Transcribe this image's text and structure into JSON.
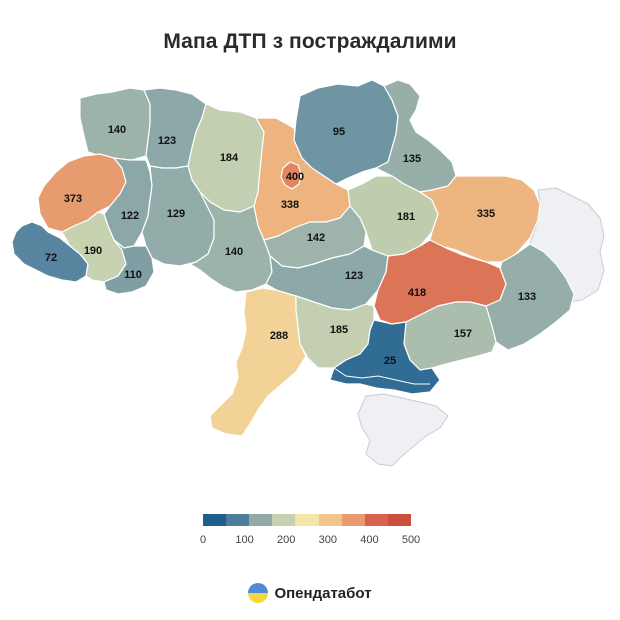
{
  "title": "Мапа ДТП з постраждалими",
  "brand": "Опендатабот",
  "legend": {
    "colors": [
      "#1f5f8e",
      "#4d7f9d",
      "#8fa9a8",
      "#c5d1b0",
      "#f4e6a8",
      "#f1c58b",
      "#e79b6f",
      "#d7634e",
      "#c94f3b"
    ],
    "ticks": [
      "0",
      "100",
      "200",
      "300",
      "400",
      "500"
    ]
  },
  "colors": {
    "occupied": "#eef0f4",
    "occupied_stroke": "#c9ccd6",
    "logo_blue": "#4f8ad6",
    "logo_yellow": "#f5d63c"
  },
  "chart_data": {
    "type": "choropleth",
    "value_range": [
      0,
      500
    ],
    "regions": [
      {
        "id": "volyn",
        "value": 140
      },
      {
        "id": "rivne",
        "value": 123
      },
      {
        "id": "zhytomyr",
        "value": 184
      },
      {
        "id": "kyiv-oblast",
        "value": 338
      },
      {
        "id": "kyiv-city",
        "value": 400
      },
      {
        "id": "chernihiv",
        "value": 95
      },
      {
        "id": "sumy",
        "value": 135
      },
      {
        "id": "lviv",
        "value": 373
      },
      {
        "id": "ternopil",
        "value": 122
      },
      {
        "id": "khmelnytskyi",
        "value": 129
      },
      {
        "id": "poltava",
        "value": 181
      },
      {
        "id": "kharkiv",
        "value": 335
      },
      {
        "id": "zakarpattia",
        "value": 72
      },
      {
        "id": "ivano-frankivsk",
        "value": 190
      },
      {
        "id": "chernivtsi",
        "value": 110
      },
      {
        "id": "vinnytsia",
        "value": 140
      },
      {
        "id": "cherkasy",
        "value": 142
      },
      {
        "id": "kirovohrad",
        "value": 123
      },
      {
        "id": "dnipropetrovsk",
        "value": 418
      },
      {
        "id": "donetsk",
        "value": 133
      },
      {
        "id": "odesa",
        "value": 288
      },
      {
        "id": "mykolaiv",
        "value": 185
      },
      {
        "id": "zaporizhzhia",
        "value": 157
      },
      {
        "id": "kherson",
        "value": 25
      }
    ],
    "no_data_regions": [
      "luhansk",
      "crimea"
    ]
  }
}
